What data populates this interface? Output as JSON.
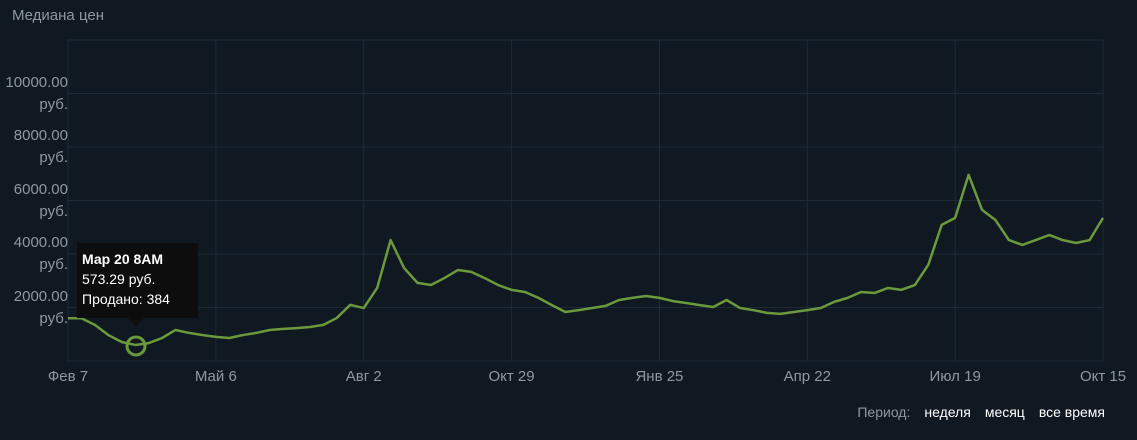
{
  "title": "Медиана цен",
  "chart_data": {
    "type": "line",
    "categories": [
      "Фев 7",
      null,
      null,
      null,
      null,
      null,
      null,
      null,
      null,
      null,
      null,
      "Май 6",
      null,
      null,
      null,
      null,
      null,
      null,
      null,
      null,
      null,
      null,
      "Авг 2",
      null,
      null,
      null,
      null,
      null,
      null,
      null,
      null,
      null,
      null,
      "Окт 29",
      null,
      null,
      null,
      null,
      null,
      null,
      null,
      null,
      null,
      null,
      "Янв 25",
      null,
      null,
      null,
      null,
      null,
      null,
      null,
      null,
      null,
      null,
      "Апр 22",
      null,
      null,
      null,
      null,
      null,
      null,
      null,
      null,
      null,
      null,
      "Июл 19",
      null,
      null,
      null,
      null,
      null,
      null,
      null,
      null,
      null,
      null,
      "Окт 15"
    ],
    "series": [
      {
        "name": "Медиана цен",
        "color": "#6b9a3c",
        "values": [
          1600,
          1600,
          1350,
          970,
          710,
          600,
          670,
          860,
          1160,
          1050,
          970,
          900,
          860,
          970,
          1050,
          1160,
          1200,
          1230,
          1270,
          1350,
          1610,
          2100,
          1980,
          2730,
          4520,
          3480,
          2920,
          2840,
          3100,
          3400,
          3330,
          3100,
          2840,
          2660,
          2580,
          2360,
          2090,
          1830,
          1900,
          1980,
          2060,
          2280,
          2360,
          2430,
          2360,
          2240,
          2170,
          2090,
          2020,
          2280,
          1980,
          1900,
          1800,
          1760,
          1830,
          1900,
          1980,
          2210,
          2360,
          2580,
          2540,
          2730,
          2660,
          2840,
          3590,
          5090,
          5350,
          6960,
          5650,
          5270,
          4520,
          4340,
          4520,
          4710,
          4520,
          4410,
          4520,
          5350
        ]
      }
    ],
    "ylim": [
      0,
      12000
    ],
    "yticks": [
      {
        "value": 2000,
        "label": "2000.00\nруб."
      },
      {
        "value": 4000,
        "label": "4000.00\nруб."
      },
      {
        "value": 6000,
        "label": "6000.00\nруб."
      },
      {
        "value": 8000,
        "label": "8000.00\nруб."
      },
      {
        "value": 10000,
        "label": "10000.00\nруб."
      }
    ],
    "grid": true,
    "tooltip": {
      "date": "Мар 20 8AM",
      "price": "573.29 руб.",
      "sold": "Продано: 384"
    }
  },
  "footer": {
    "label": "Период:",
    "options": [
      "неделя",
      "месяц",
      "все время"
    ]
  }
}
